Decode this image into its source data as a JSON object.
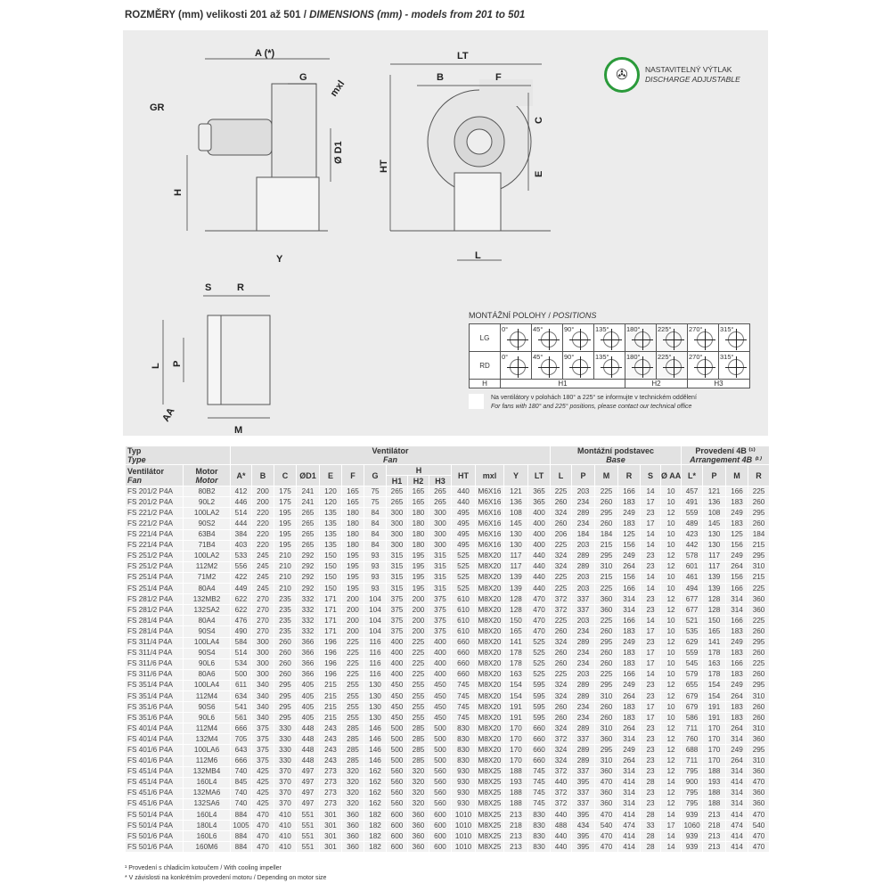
{
  "title": {
    "cz": "ROZMĚRY (mm) velikosti 201 až 501 / ",
    "en": "DIMENSIONS (mm) - models from 201 to 501"
  },
  "drawing": {
    "labels": {
      "A": "A (*)",
      "G": "G",
      "mxl": "mxl",
      "GR": "GR",
      "D1": "Ø D1",
      "H": "H",
      "Y": "Y",
      "LT": "LT",
      "B": "B",
      "F": "F",
      "C": "C",
      "E": "E",
      "HT": "HT",
      "L_side": "L",
      "S": "S",
      "R": "R",
      "L_base": "L",
      "P": "P",
      "M": "M",
      "AA": "AA"
    }
  },
  "discharge": {
    "cz": "NASTAVITELNÝ VÝTLAK",
    "en": "DISCHARGE ADJUSTABLE",
    "icon": "fan-rotation-icon",
    "ring_color": "#2a9a3a"
  },
  "positions": {
    "title_cz": "MONTÁŽNÍ POLOHY / ",
    "title_en": "POSITIONS",
    "lg": "LG",
    "rd": "RD",
    "angles": [
      "0°",
      "45°",
      "90°",
      "135°",
      "180°",
      "225°",
      "270°",
      "315°"
    ],
    "h": "H",
    "h1": "H1",
    "h2": "H2",
    "h3": "H3",
    "note_cz": "Na ventilátory v polohách 180° a 225° se informujte v technickém oddělení",
    "note_en": "For fans with 180° and 225° positions, please contact our technical office"
  },
  "table": {
    "group": {
      "type": "Typ",
      "type_en": "Type",
      "fan": "Ventilátor",
      "fan_en": "Fan",
      "base": "Montážní podstavec",
      "base_en": "Base",
      "arr": "Provedení 4B ⁽¹⁾",
      "arr_en": "Arrangement 4B ⁽¹⁾"
    },
    "sub": {
      "vent": "Ventilátor",
      "vent_en": "Fan",
      "motor": "Motor",
      "motor_en": "Motor",
      "h": "H"
    },
    "cols": [
      "A*",
      "B",
      "C",
      "ØD1",
      "E",
      "F",
      "G",
      "H1",
      "H2",
      "H3",
      "HT",
      "mxl",
      "Y",
      "LT",
      "L",
      "P",
      "M",
      "R",
      "S",
      "Ø AA",
      "L*",
      "P",
      "M",
      "R"
    ],
    "rows": [
      [
        "FS 201/2 P4A",
        "80B2",
        "412",
        "200",
        "175",
        "241",
        "120",
        "165",
        "75",
        "265",
        "165",
        "265",
        "440",
        "M6X16",
        "121",
        "365",
        "225",
        "203",
        "225",
        "166",
        "14",
        "10",
        "457",
        "121",
        "166",
        "225"
      ],
      [
        "FS 201/2 P4A",
        "90L2",
        "446",
        "200",
        "175",
        "241",
        "120",
        "165",
        "75",
        "265",
        "165",
        "265",
        "440",
        "M6X16",
        "136",
        "365",
        "260",
        "234",
        "260",
        "183",
        "17",
        "10",
        "491",
        "136",
        "183",
        "260"
      ],
      [
        "FS 221/2 P4A",
        "100LA2",
        "514",
        "220",
        "195",
        "265",
        "135",
        "180",
        "84",
        "300",
        "180",
        "300",
        "495",
        "M6X16",
        "108",
        "400",
        "324",
        "289",
        "295",
        "249",
        "23",
        "12",
        "559",
        "108",
        "249",
        "295"
      ],
      [
        "FS 221/2 P4A",
        "90S2",
        "444",
        "220",
        "195",
        "265",
        "135",
        "180",
        "84",
        "300",
        "180",
        "300",
        "495",
        "M6X16",
        "145",
        "400",
        "260",
        "234",
        "260",
        "183",
        "17",
        "10",
        "489",
        "145",
        "183",
        "260"
      ],
      [
        "FS 221/4 P4A",
        "63B4",
        "384",
        "220",
        "195",
        "265",
        "135",
        "180",
        "84",
        "300",
        "180",
        "300",
        "495",
        "M6X16",
        "130",
        "400",
        "206",
        "184",
        "184",
        "125",
        "14",
        "10",
        "423",
        "130",
        "125",
        "184"
      ],
      [
        "FS 221/4 P4A",
        "71B4",
        "403",
        "220",
        "195",
        "265",
        "135",
        "180",
        "84",
        "300",
        "180",
        "300",
        "495",
        "M6X16",
        "130",
        "400",
        "225",
        "203",
        "215",
        "156",
        "14",
        "10",
        "442",
        "130",
        "156",
        "215"
      ],
      [
        "FS 251/2 P4A",
        "100LA2",
        "533",
        "245",
        "210",
        "292",
        "150",
        "195",
        "93",
        "315",
        "195",
        "315",
        "525",
        "M8X20",
        "117",
        "440",
        "324",
        "289",
        "295",
        "249",
        "23",
        "12",
        "578",
        "117",
        "249",
        "295"
      ],
      [
        "FS 251/2 P4A",
        "112M2",
        "556",
        "245",
        "210",
        "292",
        "150",
        "195",
        "93",
        "315",
        "195",
        "315",
        "525",
        "M8X20",
        "117",
        "440",
        "324",
        "289",
        "310",
        "264",
        "23",
        "12",
        "601",
        "117",
        "264",
        "310"
      ],
      [
        "FS 251/4 P4A",
        "71M2",
        "422",
        "245",
        "210",
        "292",
        "150",
        "195",
        "93",
        "315",
        "195",
        "315",
        "525",
        "M8X20",
        "139",
        "440",
        "225",
        "203",
        "215",
        "156",
        "14",
        "10",
        "461",
        "139",
        "156",
        "215"
      ],
      [
        "FS 251/4 P4A",
        "80A4",
        "449",
        "245",
        "210",
        "292",
        "150",
        "195",
        "93",
        "315",
        "195",
        "315",
        "525",
        "M8X20",
        "139",
        "440",
        "225",
        "203",
        "225",
        "166",
        "14",
        "10",
        "494",
        "139",
        "166",
        "225"
      ],
      [
        "FS 281/2 P4A",
        "132MB2",
        "622",
        "270",
        "235",
        "332",
        "171",
        "200",
        "104",
        "375",
        "200",
        "375",
        "610",
        "M8X20",
        "128",
        "470",
        "372",
        "337",
        "360",
        "314",
        "23",
        "12",
        "677",
        "128",
        "314",
        "360"
      ],
      [
        "FS 281/2 P4A",
        "132SA2",
        "622",
        "270",
        "235",
        "332",
        "171",
        "200",
        "104",
        "375",
        "200",
        "375",
        "610",
        "M8X20",
        "128",
        "470",
        "372",
        "337",
        "360",
        "314",
        "23",
        "12",
        "677",
        "128",
        "314",
        "360"
      ],
      [
        "FS 281/4 P4A",
        "80A4",
        "476",
        "270",
        "235",
        "332",
        "171",
        "200",
        "104",
        "375",
        "200",
        "375",
        "610",
        "M8X20",
        "150",
        "470",
        "225",
        "203",
        "225",
        "166",
        "14",
        "10",
        "521",
        "150",
        "166",
        "225"
      ],
      [
        "FS 281/4 P4A",
        "90S4",
        "490",
        "270",
        "235",
        "332",
        "171",
        "200",
        "104",
        "375",
        "200",
        "375",
        "610",
        "M8X20",
        "165",
        "470",
        "260",
        "234",
        "260",
        "183",
        "17",
        "10",
        "535",
        "165",
        "183",
        "260"
      ],
      [
        "FS 311/4 P4A",
        "100LA4",
        "584",
        "300",
        "260",
        "366",
        "196",
        "225",
        "116",
        "400",
        "225",
        "400",
        "660",
        "M8X20",
        "141",
        "525",
        "324",
        "289",
        "295",
        "249",
        "23",
        "12",
        "629",
        "141",
        "249",
        "295"
      ],
      [
        "FS 311/4 P4A",
        "90S4",
        "514",
        "300",
        "260",
        "366",
        "196",
        "225",
        "116",
        "400",
        "225",
        "400",
        "660",
        "M8X20",
        "178",
        "525",
        "260",
        "234",
        "260",
        "183",
        "17",
        "10",
        "559",
        "178",
        "183",
        "260"
      ],
      [
        "FS 311/6 P4A",
        "90L6",
        "534",
        "300",
        "260",
        "366",
        "196",
        "225",
        "116",
        "400",
        "225",
        "400",
        "660",
        "M8X20",
        "178",
        "525",
        "260",
        "234",
        "260",
        "183",
        "17",
        "10",
        "545",
        "163",
        "166",
        "225"
      ],
      [
        "FS 311/6 P4A",
        "80A6",
        "500",
        "300",
        "260",
        "366",
        "196",
        "225",
        "116",
        "400",
        "225",
        "400",
        "660",
        "M8X20",
        "163",
        "525",
        "225",
        "203",
        "225",
        "166",
        "14",
        "10",
        "579",
        "178",
        "183",
        "260"
      ],
      [
        "FS 351/4 P4A",
        "100LA4",
        "611",
        "340",
        "295",
        "405",
        "215",
        "255",
        "130",
        "450",
        "255",
        "450",
        "745",
        "M8X20",
        "154",
        "595",
        "324",
        "289",
        "295",
        "249",
        "23",
        "12",
        "655",
        "154",
        "249",
        "295"
      ],
      [
        "FS 351/4 P4A",
        "112M4",
        "634",
        "340",
        "295",
        "405",
        "215",
        "255",
        "130",
        "450",
        "255",
        "450",
        "745",
        "M8X20",
        "154",
        "595",
        "324",
        "289",
        "310",
        "264",
        "23",
        "12",
        "679",
        "154",
        "264",
        "310"
      ],
      [
        "FS 351/6 P4A",
        "90S6",
        "541",
        "340",
        "295",
        "405",
        "215",
        "255",
        "130",
        "450",
        "255",
        "450",
        "745",
        "M8X20",
        "191",
        "595",
        "260",
        "234",
        "260",
        "183",
        "17",
        "10",
        "679",
        "191",
        "183",
        "260"
      ],
      [
        "FS 351/6 P4A",
        "90L6",
        "561",
        "340",
        "295",
        "405",
        "215",
        "255",
        "130",
        "450",
        "255",
        "450",
        "745",
        "M8X20",
        "191",
        "595",
        "260",
        "234",
        "260",
        "183",
        "17",
        "10",
        "586",
        "191",
        "183",
        "260"
      ],
      [
        "FS 401/4 P4A",
        "112M4",
        "666",
        "375",
        "330",
        "448",
        "243",
        "285",
        "146",
        "500",
        "285",
        "500",
        "830",
        "M8X20",
        "170",
        "660",
        "324",
        "289",
        "310",
        "264",
        "23",
        "12",
        "711",
        "170",
        "264",
        "310"
      ],
      [
        "FS 401/4 P4A",
        "132M4",
        "705",
        "375",
        "330",
        "448",
        "243",
        "285",
        "146",
        "500",
        "285",
        "500",
        "830",
        "M8X20",
        "170",
        "660",
        "372",
        "337",
        "360",
        "314",
        "23",
        "12",
        "760",
        "170",
        "314",
        "360"
      ],
      [
        "FS 401/6 P4A",
        "100LA6",
        "643",
        "375",
        "330",
        "448",
        "243",
        "285",
        "146",
        "500",
        "285",
        "500",
        "830",
        "M8X20",
        "170",
        "660",
        "324",
        "289",
        "295",
        "249",
        "23",
        "12",
        "688",
        "170",
        "249",
        "295"
      ],
      [
        "FS 401/6 P4A",
        "112M6",
        "666",
        "375",
        "330",
        "448",
        "243",
        "285",
        "146",
        "500",
        "285",
        "500",
        "830",
        "M8X20",
        "170",
        "660",
        "324",
        "289",
        "310",
        "264",
        "23",
        "12",
        "711",
        "170",
        "264",
        "310"
      ],
      [
        "FS 451/4 P4A",
        "132MB4",
        "740",
        "425",
        "370",
        "497",
        "273",
        "320",
        "162",
        "560",
        "320",
        "560",
        "930",
        "M8X25",
        "188",
        "745",
        "372",
        "337",
        "360",
        "314",
        "23",
        "12",
        "795",
        "188",
        "314",
        "360"
      ],
      [
        "FS 451/4 P4A",
        "160L4",
        "845",
        "425",
        "370",
        "497",
        "273",
        "320",
        "162",
        "560",
        "320",
        "560",
        "930",
        "M8X25",
        "193",
        "745",
        "440",
        "395",
        "470",
        "414",
        "28",
        "14",
        "900",
        "193",
        "414",
        "470"
      ],
      [
        "FS 451/6 P4A",
        "132MA6",
        "740",
        "425",
        "370",
        "497",
        "273",
        "320",
        "162",
        "560",
        "320",
        "560",
        "930",
        "M8X25",
        "188",
        "745",
        "372",
        "337",
        "360",
        "314",
        "23",
        "12",
        "795",
        "188",
        "314",
        "360"
      ],
      [
        "FS 451/6 P4A",
        "132SA6",
        "740",
        "425",
        "370",
        "497",
        "273",
        "320",
        "162",
        "560",
        "320",
        "560",
        "930",
        "M8X25",
        "188",
        "745",
        "372",
        "337",
        "360",
        "314",
        "23",
        "12",
        "795",
        "188",
        "314",
        "360"
      ],
      [
        "FS 501/4 P4A",
        "160L4",
        "884",
        "470",
        "410",
        "551",
        "301",
        "360",
        "182",
        "600",
        "360",
        "600",
        "1010",
        "M8X25",
        "213",
        "830",
        "440",
        "395",
        "470",
        "414",
        "28",
        "14",
        "939",
        "213",
        "414",
        "470"
      ],
      [
        "FS 501/4 P4A",
        "180L4",
        "1005",
        "470",
        "410",
        "551",
        "301",
        "360",
        "182",
        "600",
        "360",
        "600",
        "1010",
        "M8X25",
        "218",
        "830",
        "488",
        "434",
        "540",
        "474",
        "33",
        "17",
        "1060",
        "218",
        "474",
        "540"
      ],
      [
        "FS 501/6 P4A",
        "160L6",
        "884",
        "470",
        "410",
        "551",
        "301",
        "360",
        "182",
        "600",
        "360",
        "600",
        "1010",
        "M8X25",
        "213",
        "830",
        "440",
        "395",
        "470",
        "414",
        "28",
        "14",
        "939",
        "213",
        "414",
        "470"
      ],
      [
        "FS 501/6 P4A",
        "160M6",
        "884",
        "470",
        "410",
        "551",
        "301",
        "360",
        "182",
        "600",
        "360",
        "600",
        "1010",
        "M8X25",
        "213",
        "830",
        "440",
        "395",
        "470",
        "414",
        "28",
        "14",
        "939",
        "213",
        "414",
        "470"
      ]
    ]
  },
  "footnotes": [
    "¹ Provedení s chladicím kotoučem / With cooling impeller",
    "* V závislosti na konkrétním provedení motoru / Depending on motor size"
  ]
}
